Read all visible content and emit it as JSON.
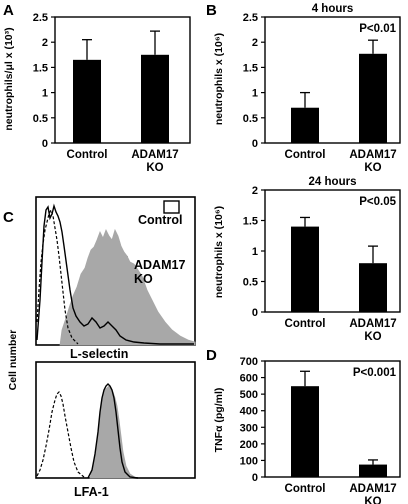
{
  "panel_letters": {
    "A": "A",
    "B": "B",
    "C": "C",
    "D": "D"
  },
  "colors": {
    "bar": "#000000",
    "histogram_fill": "#a8a8a8",
    "line": "#000000"
  },
  "chart_data": [
    {
      "id": "A",
      "type": "bar",
      "title": "",
      "ylabel": "neutrophils/μl x (10³)",
      "categories": [
        "Control",
        "ADAM17\nKO"
      ],
      "values": [
        1.65,
        1.75
      ],
      "errors": [
        0.4,
        0.47
      ],
      "ylim": [
        0,
        2.5
      ],
      "yticks": [
        "0",
        "0.5",
        "1",
        "1.5",
        "2",
        "2.5"
      ],
      "pvalue": ""
    },
    {
      "id": "B1",
      "type": "bar",
      "title": "4 hours",
      "ylabel": "neutrophils x (10⁶)",
      "categories": [
        "Control",
        "ADAM17\nKO"
      ],
      "values": [
        0.7,
        1.77
      ],
      "errors": [
        0.3,
        0.27
      ],
      "ylim": [
        0,
        2.5
      ],
      "yticks": [
        "0",
        "0.5",
        "1",
        "1.5",
        "2",
        "2.5"
      ],
      "pvalue": "P<0.01"
    },
    {
      "id": "B2",
      "type": "bar",
      "title": "24 hours",
      "ylabel": "neutrophils x (10⁶)",
      "categories": [
        "Control",
        "ADAM17\nKO"
      ],
      "values": [
        1.4,
        0.8
      ],
      "errors": [
        0.15,
        0.28
      ],
      "ylim": [
        0,
        2
      ],
      "yticks": [
        "0",
        "0.5",
        "1",
        "1.5",
        "2"
      ],
      "pvalue": "P<0.05"
    },
    {
      "id": "D",
      "type": "bar",
      "title": "",
      "ylabel": "TNFα (pg/ml)",
      "categories": [
        "Control",
        "ADAM17\nKO"
      ],
      "values": [
        548,
        75
      ],
      "errors": [
        90,
        28
      ],
      "ylim": [
        0,
        700
      ],
      "yticks": [
        "0",
        "100",
        "200",
        "300",
        "400",
        "500",
        "600",
        "700"
      ],
      "pvalue": "P<0.001"
    }
  ],
  "flow": {
    "ylabel": "Cell number",
    "legend": {
      "control": "Control",
      "ko": "ADAM17\nKO"
    },
    "top_marker": "L-selectin",
    "bottom_marker": "LFA-1"
  }
}
